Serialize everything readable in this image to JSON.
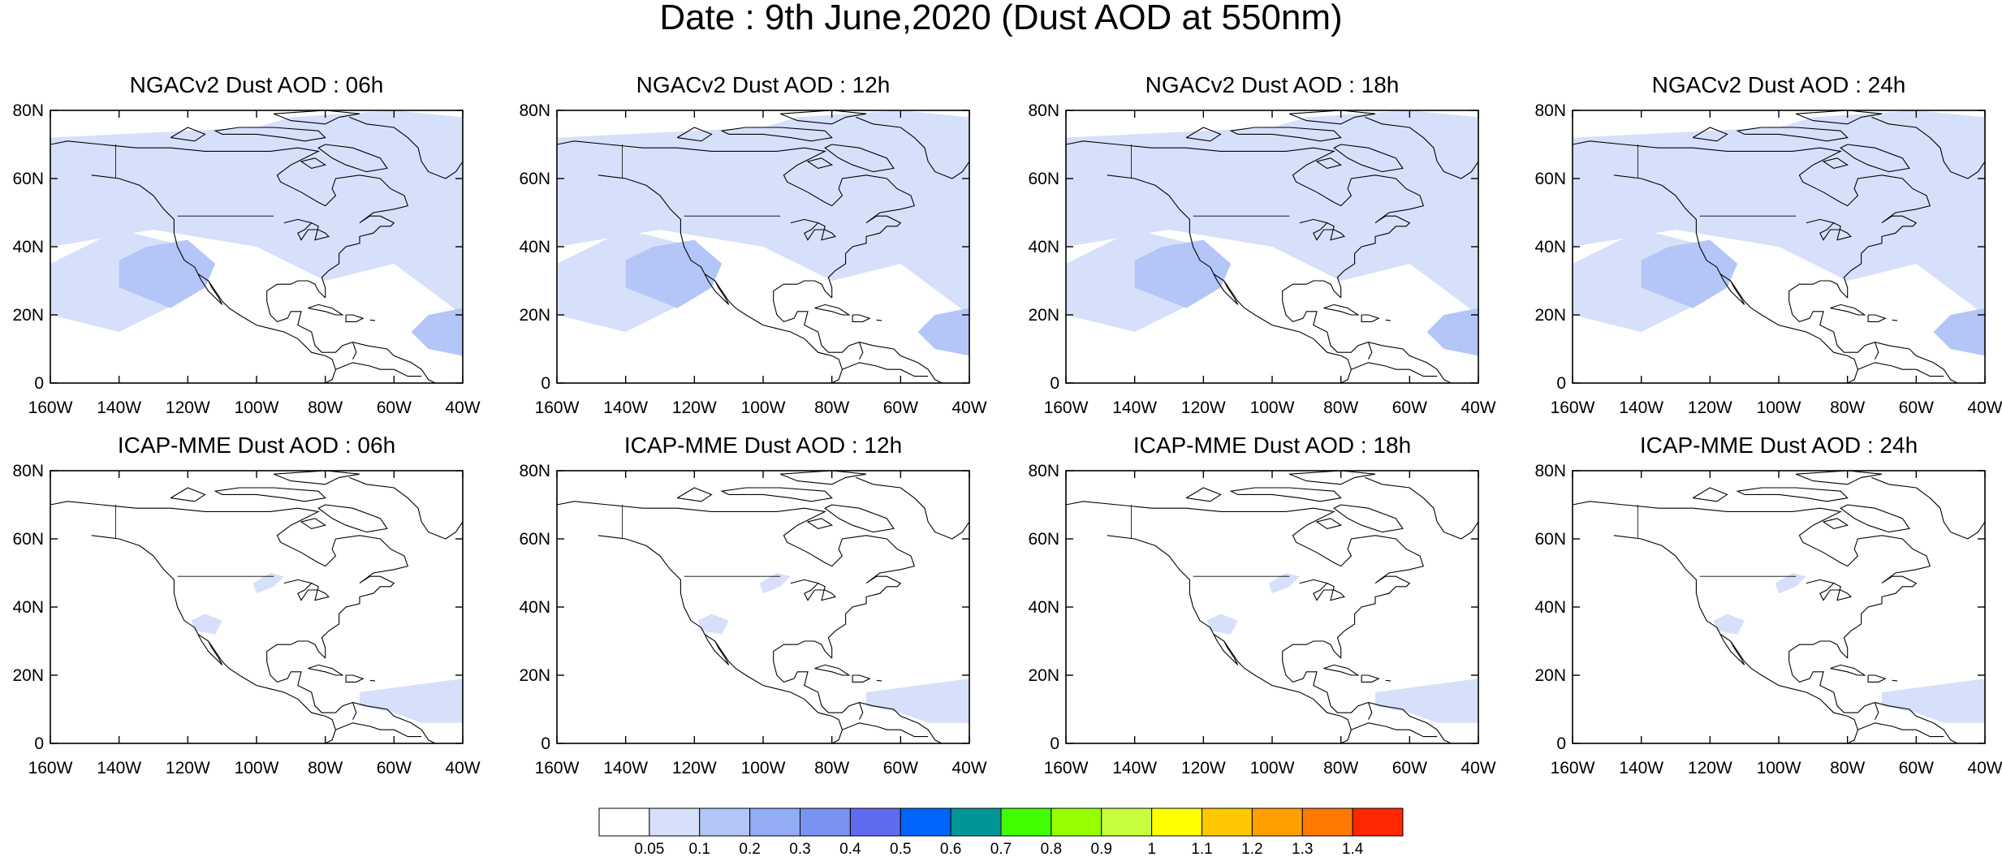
{
  "title": "Date : 9th June,2020 (Dust AOD at 550nm)",
  "lat_ticks": [
    "80N",
    "60N",
    "40N",
    "20N",
    "0"
  ],
  "lon_ticks": [
    "160W",
    "140W",
    "120W",
    "100W",
    "80W",
    "60W",
    "40W"
  ],
  "panels": [
    {
      "title": "NGACv2 Dust AOD : 06h",
      "model": "NGACv2",
      "lead": "06h"
    },
    {
      "title": "NGACv2 Dust AOD : 12h",
      "model": "NGACv2",
      "lead": "12h"
    },
    {
      "title": "NGACv2 Dust AOD : 18h",
      "model": "NGACv2",
      "lead": "18h"
    },
    {
      "title": "NGACv2 Dust AOD : 24h",
      "model": "NGACv2",
      "lead": "24h"
    },
    {
      "title": "ICAP-MME Dust AOD : 06h",
      "model": "ICAP-MME",
      "lead": "06h"
    },
    {
      "title": "ICAP-MME Dust AOD : 12h",
      "model": "ICAP-MME",
      "lead": "12h"
    },
    {
      "title": "ICAP-MME Dust AOD : 18h",
      "model": "ICAP-MME",
      "lead": "18h"
    },
    {
      "title": "ICAP-MME Dust AOD : 24h",
      "model": "ICAP-MME",
      "lead": "24h"
    }
  ],
  "colorbar": {
    "labels": [
      "0.05",
      "0.1",
      "0.2",
      "0.3",
      "0.4",
      "0.5",
      "0.6",
      "0.7",
      "0.8",
      "0.9",
      "1",
      "1.1",
      "1.2",
      "1.3",
      "1.4"
    ],
    "colors": [
      "#ffffff",
      "#d6e0fa",
      "#b4c6f7",
      "#93acf4",
      "#7a93f2",
      "#5f6cf0",
      "#0064ff",
      "#009696",
      "#41ff00",
      "#96ff00",
      "#c8ff3c",
      "#ffff00",
      "#ffc800",
      "#ffa000",
      "#ff7800",
      "#ff2800"
    ]
  },
  "colors": {
    "light_dust": "#d6e0fa",
    "mid_dust": "#b4c6f7",
    "coast": "#000000"
  }
}
